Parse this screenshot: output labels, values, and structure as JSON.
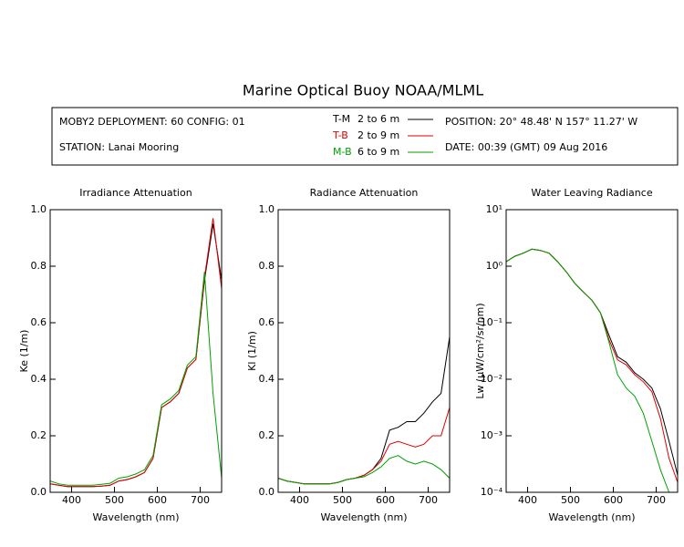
{
  "title": "Marine Optical Buoy NOAA/MLML",
  "header": {
    "deployment": "MOBY2 DEPLOYMENT: 60 CONFIG: 01",
    "station": "STATION: Lanai Mooring",
    "position": "POSITION: 20° 48.48' N   157° 11.27' W",
    "date": "DATE: 00:39 (GMT) 09 Aug 2016"
  },
  "legend": [
    {
      "name": "T-M",
      "depth": "2 to 6  m",
      "color": "#000000"
    },
    {
      "name": "T-B",
      "depth": "2 to 9  m",
      "color": "#e00000"
    },
    {
      "name": "M-B",
      "depth": "6 to 9  m",
      "color": "#00a000"
    }
  ],
  "chart_data": [
    {
      "type": "line",
      "title": "Irradiance Attenuation",
      "xlabel": "Wavelength (nm)",
      "ylabel": "Ke  (1/m)",
      "x": [
        350,
        370,
        390,
        410,
        430,
        450,
        470,
        490,
        510,
        530,
        550,
        570,
        590,
        610,
        630,
        650,
        670,
        690,
        710,
        730,
        750
      ],
      "xlim": [
        350,
        750
      ],
      "xticks": [
        400,
        500,
        600,
        700
      ],
      "ylim": [
        0,
        1
      ],
      "yticks": [
        {
          "value": 0,
          "label": "0.0"
        },
        {
          "value": 0.2,
          "label": "0.2"
        },
        {
          "value": 0.4,
          "label": "0.4"
        },
        {
          "value": 0.6,
          "label": "0.6"
        },
        {
          "value": 0.8,
          "label": "0.8"
        },
        {
          "value": 1,
          "label": "1.0"
        }
      ],
      "series": [
        {
          "color": "#000000",
          "values": [
            0.03,
            0.025,
            0.02,
            0.02,
            0.02,
            0.02,
            0.022,
            0.025,
            0.04,
            0.045,
            0.055,
            0.07,
            0.12,
            0.3,
            0.32,
            0.35,
            0.44,
            0.47,
            0.75,
            0.95,
            0.75
          ]
        },
        {
          "color": "#e00000",
          "values": [
            0.03,
            0.025,
            0.02,
            0.02,
            0.02,
            0.02,
            0.022,
            0.025,
            0.04,
            0.045,
            0.055,
            0.07,
            0.12,
            0.3,
            0.32,
            0.35,
            0.44,
            0.47,
            0.76,
            0.97,
            0.72
          ]
        },
        {
          "color": "#00a000",
          "values": [
            0.04,
            0.03,
            0.025,
            0.025,
            0.025,
            0.025,
            0.028,
            0.032,
            0.05,
            0.055,
            0.065,
            0.08,
            0.13,
            0.31,
            0.33,
            0.36,
            0.45,
            0.48,
            0.78,
            0.35,
            0.05
          ]
        }
      ]
    },
    {
      "type": "line",
      "title": "Radiance Attenuation",
      "xlabel": "Wavelength (nm)",
      "ylabel": "Kl  (1/m)",
      "x": [
        350,
        370,
        390,
        410,
        430,
        450,
        470,
        490,
        510,
        530,
        550,
        570,
        590,
        610,
        630,
        650,
        670,
        690,
        710,
        730,
        750
      ],
      "xlim": [
        350,
        750
      ],
      "xticks": [
        400,
        500,
        600,
        700
      ],
      "ylim": [
        0,
        1
      ],
      "yticks": [
        {
          "value": 0,
          "label": "0.0"
        },
        {
          "value": 0.2,
          "label": "0.2"
        },
        {
          "value": 0.4,
          "label": "0.4"
        },
        {
          "value": 0.6,
          "label": "0.6"
        },
        {
          "value": 0.8,
          "label": "0.8"
        },
        {
          "value": 1,
          "label": "1.0"
        }
      ],
      "series": [
        {
          "color": "#000000",
          "values": [
            0.05,
            0.04,
            0.035,
            0.03,
            0.03,
            0.03,
            0.03,
            0.035,
            0.045,
            0.05,
            0.06,
            0.08,
            0.12,
            0.22,
            0.23,
            0.25,
            0.25,
            0.28,
            0.32,
            0.35,
            0.55
          ]
        },
        {
          "color": "#e00000",
          "values": [
            0.05,
            0.04,
            0.035,
            0.03,
            0.03,
            0.03,
            0.03,
            0.035,
            0.045,
            0.05,
            0.06,
            0.08,
            0.11,
            0.17,
            0.18,
            0.17,
            0.16,
            0.17,
            0.2,
            0.2,
            0.3
          ]
        },
        {
          "color": "#00a000",
          "values": [
            0.05,
            0.04,
            0.035,
            0.03,
            0.03,
            0.03,
            0.03,
            0.035,
            0.045,
            0.05,
            0.055,
            0.07,
            0.09,
            0.12,
            0.13,
            0.11,
            0.1,
            0.11,
            0.1,
            0.08,
            0.05
          ]
        }
      ]
    },
    {
      "type": "line",
      "title": "Water Leaving Radiance",
      "xlabel": "Wavelength (nm)",
      "ylabel": "Lw  (µW/cm²/sr/nm)",
      "x": [
        350,
        370,
        390,
        410,
        430,
        450,
        470,
        490,
        510,
        530,
        550,
        570,
        590,
        610,
        630,
        650,
        670,
        690,
        710,
        730,
        750
      ],
      "xlim": [
        350,
        750
      ],
      "xticks": [
        400,
        500,
        600,
        700
      ],
      "ylim": [
        0.0001,
        10
      ],
      "yscale": "log",
      "yticks": [
        {
          "value": 0.0001,
          "label": "10⁻⁴"
        },
        {
          "value": 0.001,
          "label": "10⁻³"
        },
        {
          "value": 0.01,
          "label": "10⁻²"
        },
        {
          "value": 0.1,
          "label": "10⁻¹"
        },
        {
          "value": 1,
          "label": "10⁰"
        },
        {
          "value": 10,
          "label": "10¹"
        }
      ],
      "series": [
        {
          "color": "#000000",
          "values": [
            1.2,
            1.5,
            1.7,
            2.0,
            1.9,
            1.7,
            1.2,
            0.8,
            0.5,
            0.35,
            0.25,
            0.15,
            0.06,
            0.025,
            0.02,
            0.013,
            0.01,
            0.007,
            0.003,
            0.0008,
            0.0002
          ]
        },
        {
          "color": "#e00000",
          "values": [
            1.2,
            1.5,
            1.7,
            2.0,
            1.9,
            1.7,
            1.2,
            0.8,
            0.5,
            0.35,
            0.25,
            0.15,
            0.05,
            0.022,
            0.018,
            0.012,
            0.009,
            0.006,
            0.002,
            0.0004,
            0.00015
          ]
        },
        {
          "color": "#00a000",
          "values": [
            1.2,
            1.5,
            1.7,
            2.0,
            1.9,
            1.7,
            1.2,
            0.8,
            0.5,
            0.35,
            0.25,
            0.15,
            0.045,
            0.012,
            0.007,
            0.005,
            0.0025,
            0.0008,
            0.00025,
            0.0001,
            null
          ]
        }
      ]
    }
  ]
}
